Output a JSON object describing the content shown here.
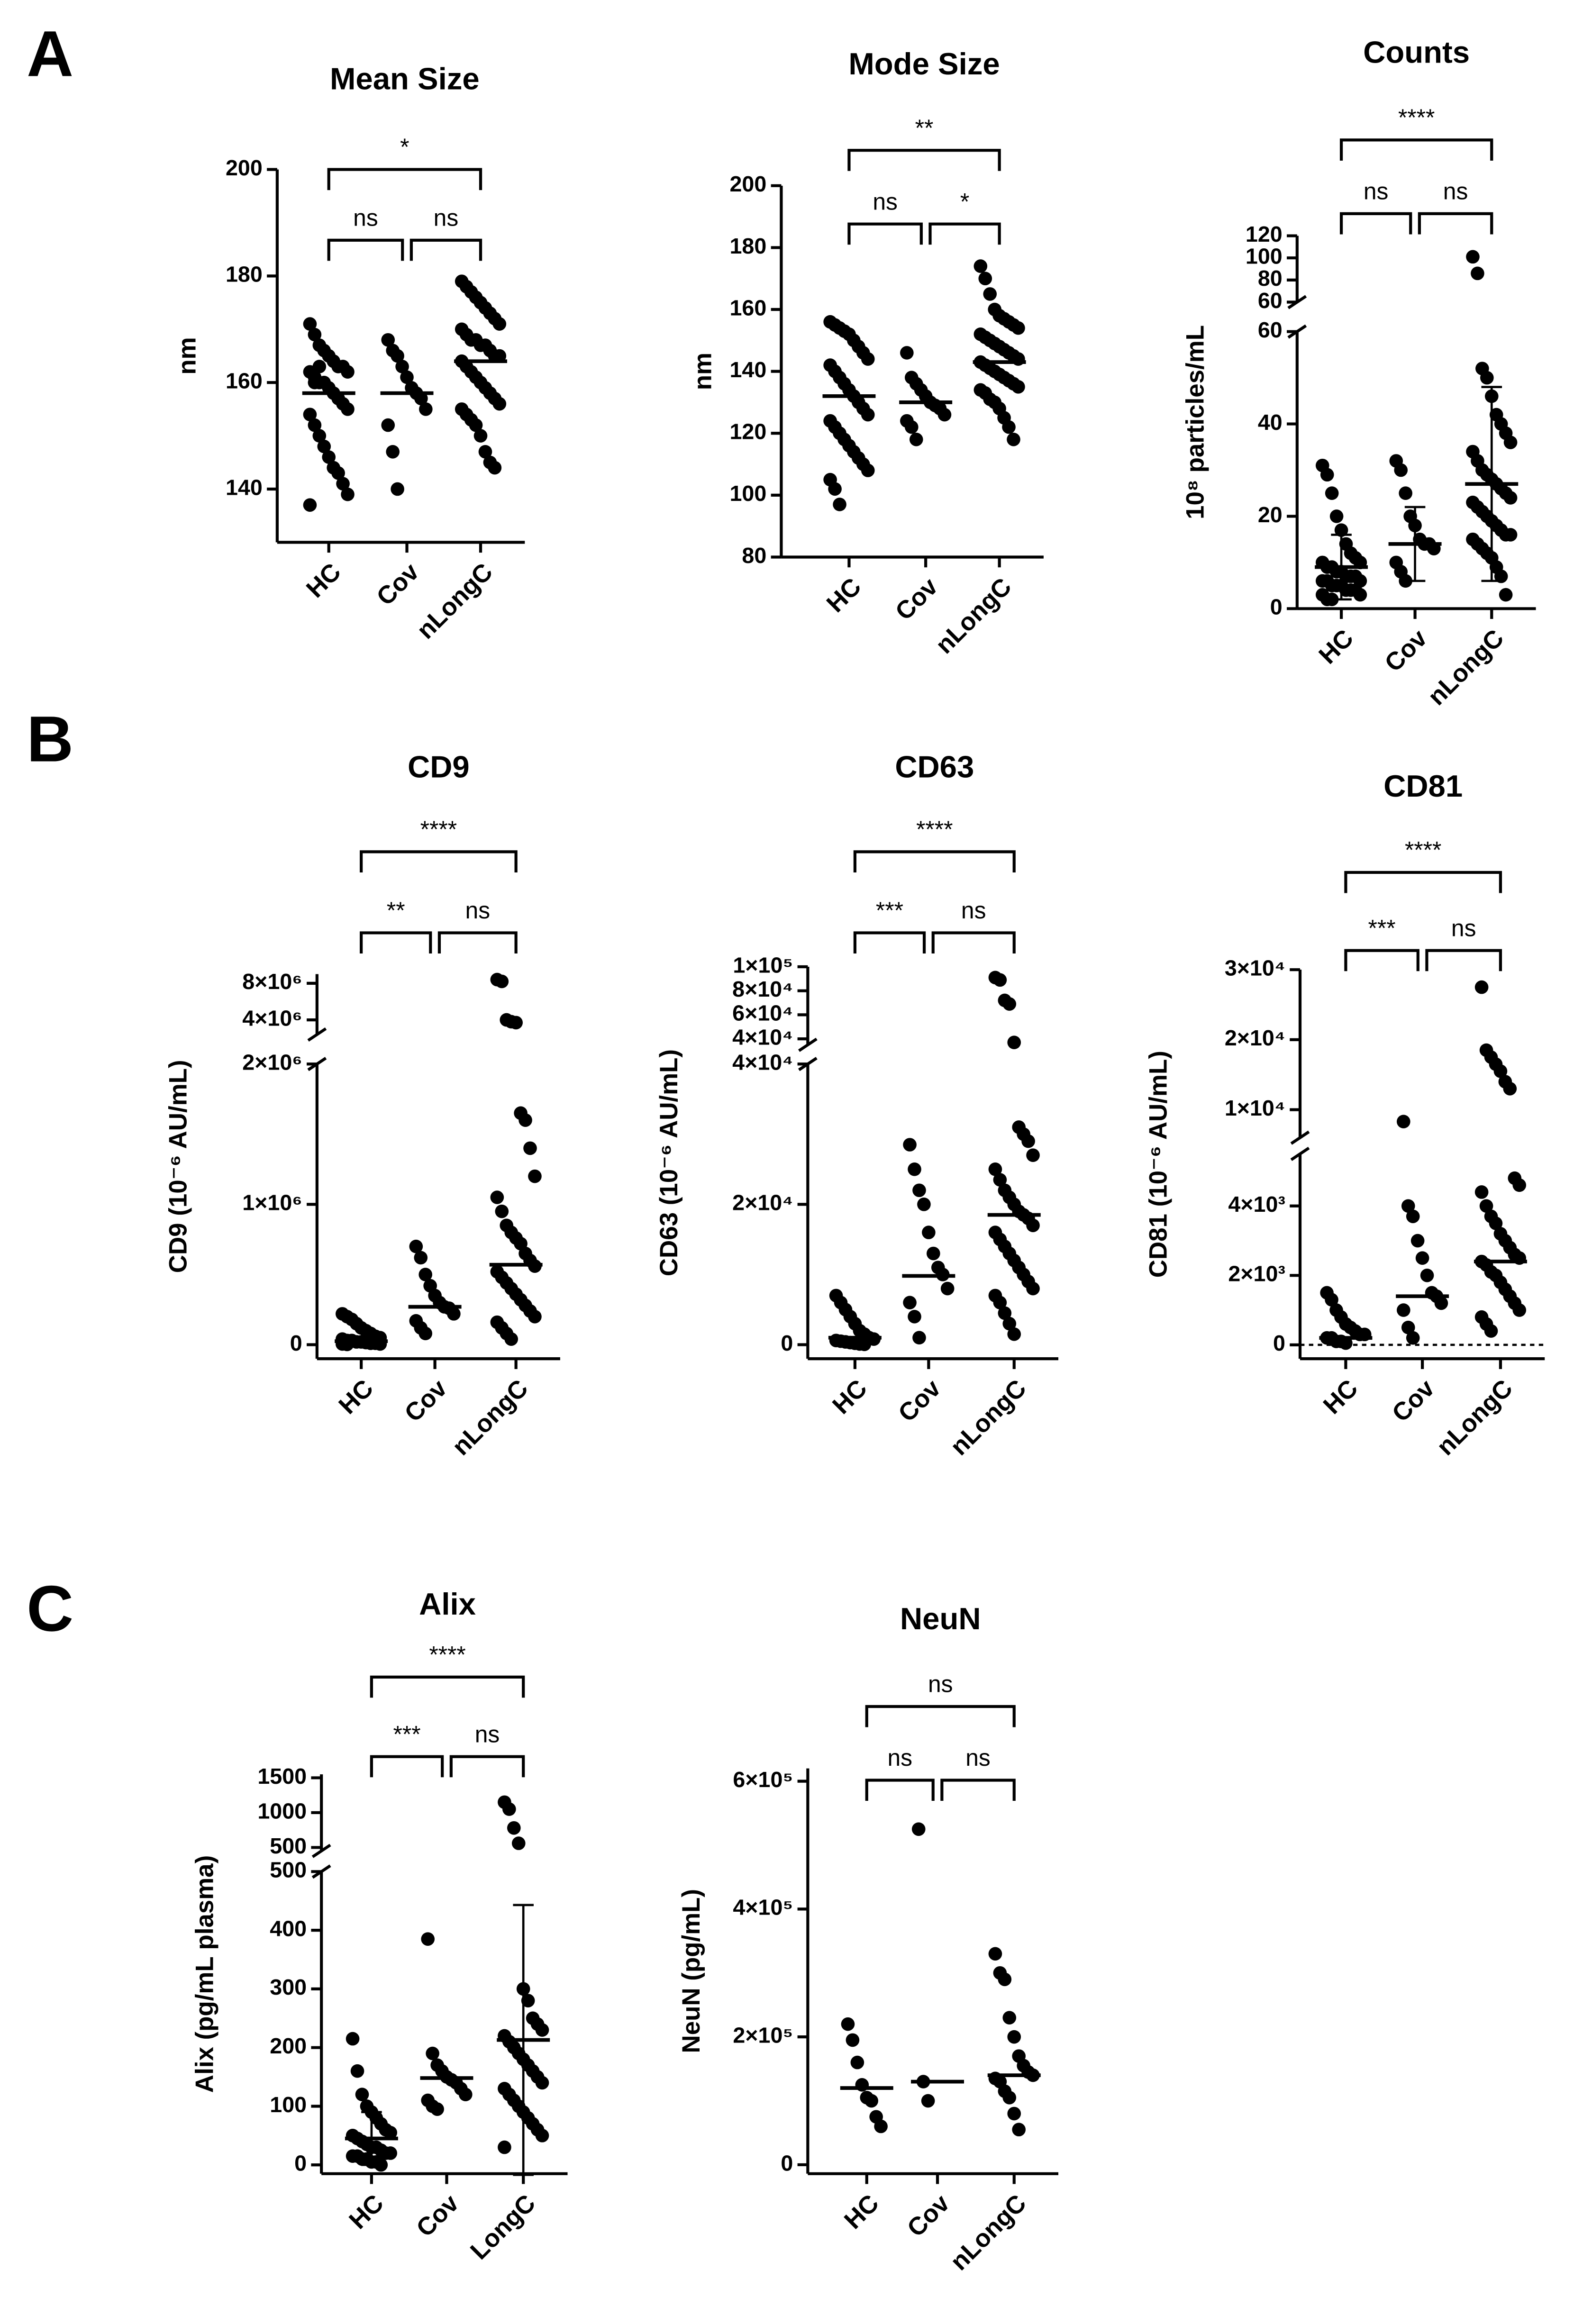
{
  "panel_labels": [
    "A",
    "B",
    "C"
  ],
  "chart_data": [
    {
      "type": "dotplot",
      "title": "Mean Size",
      "ylabel": "nm",
      "color": "#000000",
      "categories": [
        "HC",
        "Cov",
        "nLongC"
      ],
      "groups": [
        {
          "values": [
            171,
            169,
            167,
            166,
            165,
            164,
            163,
            163,
            162,
            162,
            161,
            160,
            160,
            159,
            158,
            157,
            156,
            155,
            154,
            152,
            150,
            148,
            146,
            144,
            143,
            141,
            139,
            137,
            160,
            163
          ],
          "center": 158
        },
        {
          "values": [
            168,
            166,
            165,
            163,
            161,
            159,
            158,
            157,
            155,
            152,
            147,
            140
          ],
          "center": 158
        },
        {
          "values": [
            179,
            178,
            177,
            176,
            175,
            174,
            173,
            172,
            171,
            170,
            169,
            168,
            168,
            167,
            167,
            166,
            165,
            165,
            164,
            163,
            162,
            161,
            160,
            159,
            158,
            157,
            156,
            155,
            154,
            153,
            152,
            150,
            147,
            145,
            144
          ],
          "center": 164
        }
      ],
      "segments": [
        {
          "ylim": [
            130,
            200
          ],
          "yticks": [
            140,
            160,
            180,
            200
          ]
        }
      ],
      "comparisons": [
        {
          "groups": [
            0,
            1
          ],
          "label": "ns"
        },
        {
          "groups": [
            1,
            2
          ],
          "label": "ns"
        },
        {
          "groups": [
            0,
            2
          ],
          "label": "*"
        }
      ]
    },
    {
      "type": "dotplot",
      "title": "Mode Size",
      "ylabel": "nm",
      "color": "#000000",
      "categories": [
        "HC",
        "Cov",
        "nLongC"
      ],
      "groups": [
        {
          "values": [
            156,
            155,
            154,
            153,
            152,
            150,
            148,
            146,
            144,
            142,
            140,
            138,
            136,
            134,
            132,
            130,
            128,
            126,
            124,
            122,
            120,
            118,
            116,
            114,
            112,
            110,
            108,
            105,
            102,
            97
          ],
          "center": 132
        },
        {
          "values": [
            146,
            138,
            136,
            134,
            132,
            130,
            129,
            128,
            126,
            124,
            122,
            118
          ],
          "center": 130
        },
        {
          "values": [
            174,
            170,
            165,
            160,
            158,
            157,
            156,
            155,
            154,
            152,
            151,
            150,
            149,
            148,
            147,
            146,
            145,
            144,
            143,
            142,
            141,
            140,
            139,
            138,
            137,
            136,
            135,
            134,
            133,
            131,
            130,
            128,
            125,
            122,
            118
          ],
          "center": 143
        }
      ],
      "segments": [
        {
          "ylim": [
            80,
            200
          ],
          "yticks": [
            80,
            100,
            120,
            140,
            160,
            180,
            200
          ]
        }
      ],
      "comparisons": [
        {
          "groups": [
            0,
            1
          ],
          "label": "ns"
        },
        {
          "groups": [
            1,
            2
          ],
          "label": "*"
        },
        {
          "groups": [
            0,
            2
          ],
          "label": "**"
        }
      ]
    },
    {
      "type": "dotplot",
      "title": "Counts",
      "ylabel": "10⁸ particles/mL",
      "color": "#000000",
      "categories": [
        "HC",
        "Cov",
        "nLongC"
      ],
      "groups": [
        {
          "values": [
            31,
            29,
            25,
            20,
            17,
            14,
            12,
            11,
            10,
            10,
            9,
            9,
            8,
            8,
            7,
            7,
            7,
            6,
            6,
            6,
            5,
            5,
            5,
            4,
            4,
            4,
            3,
            3,
            2,
            2
          ],
          "center": 9,
          "error": 7
        },
        {
          "values": [
            32,
            30,
            25,
            20,
            18,
            15,
            14,
            14,
            13,
            10,
            8,
            6
          ],
          "center": 14,
          "error": 8
        },
        {
          "values": [
            101,
            86,
            52,
            50,
            46,
            42,
            40,
            38,
            36,
            34,
            32,
            30,
            29,
            28,
            27,
            26,
            25,
            24,
            23,
            22,
            21,
            20,
            19,
            18,
            17,
            16,
            16,
            15,
            14,
            13,
            12,
            11,
            9,
            7,
            3
          ],
          "center": 27,
          "error": 21
        }
      ],
      "segments": [
        {
          "ylim": [
            0,
            60
          ],
          "yticks": [
            0,
            20,
            40,
            60
          ]
        },
        {
          "ylim": [
            60,
            120
          ],
          "yticks": [
            60,
            80,
            100,
            120
          ]
        }
      ],
      "comparisons": [
        {
          "groups": [
            0,
            1
          ],
          "label": "ns"
        },
        {
          "groups": [
            1,
            2
          ],
          "label": "ns"
        },
        {
          "groups": [
            0,
            2
          ],
          "label": "****"
        }
      ]
    },
    {
      "type": "dotplot",
      "title": "CD9",
      "ylabel": "CD9 (10⁻⁶ AU/mL)",
      "color": "#000000",
      "categories": [
        "HC",
        "Cov",
        "nLongC"
      ],
      "groups": [
        {
          "values": [
            220000,
            200000,
            180000,
            150000,
            120000,
            100000,
            80000,
            60000,
            50000,
            40000,
            30000,
            30000,
            20000,
            20000,
            15000,
            10000,
            10000,
            5000,
            5000,
            2000
          ],
          "center": 25000
        },
        {
          "values": [
            700000,
            620000,
            500000,
            420000,
            350000,
            300000,
            270000,
            260000,
            220000,
            170000,
            120000,
            80000
          ],
          "center": 270000
        },
        {
          "values": [
            8400000,
            8200000,
            4000000,
            3800000,
            3700000,
            1650000,
            1600000,
            1400000,
            1200000,
            1050000,
            950000,
            850000,
            800000,
            760000,
            720000,
            650000,
            600000,
            560000,
            520000,
            480000,
            440000,
            400000,
            360000,
            320000,
            280000,
            240000,
            200000,
            160000,
            120000,
            80000,
            40000
          ],
          "center": 570000
        }
      ],
      "segments": [
        {
          "ylim": [
            -100000,
            2000000
          ],
          "yticks": [
            0,
            {
              "value": 1000000,
              "label": "1×10⁶"
            },
            {
              "value": 2000000,
              "label": "2×10⁶"
            }
          ]
        },
        {
          "ylim": [
            2400000,
            9000000
          ],
          "yticks": [
            {
              "value": 4000000,
              "label": "4×10⁶"
            },
            {
              "value": 8000000,
              "label": "8×10⁶"
            }
          ]
        }
      ],
      "comparisons": [
        {
          "groups": [
            0,
            1
          ],
          "label": "**"
        },
        {
          "groups": [
            1,
            2
          ],
          "label": "ns"
        },
        {
          "groups": [
            0,
            2
          ],
          "label": "****"
        }
      ]
    },
    {
      "type": "dotplot",
      "title": "CD63",
      "ylabel": "CD63 (10⁻⁶ AU/mL)",
      "color": "#000000",
      "categories": [
        "HC",
        "Cov",
        "nLongC"
      ],
      "groups": [
        {
          "values": [
            7000,
            6000,
            5000,
            4000,
            3000,
            2000,
            1500,
            1000,
            800,
            600,
            500,
            400,
            300,
            200,
            100,
            50
          ],
          "center": 1000
        },
        {
          "values": [
            28500,
            25000,
            22000,
            20000,
            16000,
            13000,
            11000,
            10000,
            8000,
            6000,
            4000,
            1000
          ],
          "center": 9800
        },
        {
          "values": [
            91000,
            89000,
            72000,
            69000,
            37000,
            31000,
            30000,
            29000,
            27000,
            25000,
            23500,
            22000,
            21000,
            20000,
            19000,
            18500,
            18000,
            17000,
            16000,
            15000,
            14000,
            13000,
            12000,
            11000,
            10000,
            9000,
            8000,
            7000,
            6000,
            4500,
            3000,
            1500
          ],
          "center": 18500
        }
      ],
      "segments": [
        {
          "ylim": [
            -2000,
            40000
          ],
          "yticks": [
            0,
            {
              "value": 20000,
              "label": "2×10⁴"
            },
            {
              "value": 40000,
              "label": "4×10⁴"
            }
          ]
        },
        {
          "ylim": [
            35000,
            100000
          ],
          "yticks": [
            {
              "value": 40000,
              "label": "4×10⁴"
            },
            {
              "value": 60000,
              "label": "6×10⁴"
            },
            {
              "value": 80000,
              "label": "8×10⁴"
            },
            {
              "value": 100000,
              "label": "1×10⁵"
            }
          ]
        }
      ],
      "comparisons": [
        {
          "groups": [
            0,
            1
          ],
          "label": "***"
        },
        {
          "groups": [
            1,
            2
          ],
          "label": "ns"
        },
        {
          "groups": [
            0,
            2
          ],
          "label": "****"
        }
      ]
    },
    {
      "type": "dotplot",
      "title": "CD81",
      "ylabel": "CD81 (10⁻⁶ AU/mL)",
      "color": "#000000",
      "zero_line": true,
      "categories": [
        "HC",
        "Cov",
        "nLongC"
      ],
      "groups": [
        {
          "values": [
            1500,
            1300,
            1000,
            800,
            600,
            500,
            400,
            300,
            300,
            200,
            200,
            100,
            100,
            50
          ],
          "center": 200
        },
        {
          "values": [
            8300,
            4000,
            3700,
            3000,
            2500,
            2000,
            1500,
            1400,
            1200,
            1000,
            500,
            200
          ],
          "center": 1400
        },
        {
          "values": [
            27500,
            18500,
            17500,
            16500,
            15500,
            14000,
            13000,
            4800,
            4600,
            4400,
            4000,
            3700,
            3500,
            3200,
            3000,
            2800,
            2600,
            2500,
            2400,
            2300,
            2100,
            2000,
            1800,
            1600,
            1400,
            1200,
            1000,
            800,
            600,
            400
          ],
          "center": 2400
        }
      ],
      "segments": [
        {
          "ylim": [
            -400,
            5500
          ],
          "yticks": [
            0,
            {
              "value": 2000,
              "label": "2×10³"
            },
            {
              "value": 4000,
              "label": "4×10³"
            }
          ]
        },
        {
          "ylim": [
            6000,
            30000
          ],
          "yticks": [
            {
              "value": 10000,
              "label": "1×10⁴"
            },
            {
              "value": 20000,
              "label": "2×10⁴"
            },
            {
              "value": 30000,
              "label": "3×10⁴"
            }
          ]
        }
      ],
      "comparisons": [
        {
          "groups": [
            0,
            1
          ],
          "label": "***"
        },
        {
          "groups": [
            1,
            2
          ],
          "label": "ns"
        },
        {
          "groups": [
            0,
            2
          ],
          "label": "****"
        }
      ]
    },
    {
      "type": "dotplot",
      "title": "Alix",
      "ylabel": "Alix (pg/mL plasma)",
      "color": "#000000",
      "categories": [
        "HC",
        "Cov",
        "LongC"
      ],
      "groups": [
        {
          "values": [
            215,
            160,
            120,
            100,
            90,
            80,
            70,
            60,
            55,
            50,
            45,
            40,
            35,
            30,
            30,
            25,
            20,
            20,
            15,
            15,
            10,
            10,
            5,
            5,
            0
          ],
          "center": 45,
          "error": 45
        },
        {
          "values": [
            385,
            190,
            170,
            160,
            150,
            145,
            140,
            130,
            120,
            110,
            100,
            95
          ],
          "center": 148
        },
        {
          "values": [
            1150,
            1050,
            780,
            560,
            300,
            280,
            250,
            240,
            230,
            220,
            210,
            200,
            190,
            180,
            170,
            160,
            150,
            140,
            130,
            120,
            110,
            100,
            90,
            80,
            70,
            60,
            50,
            30
          ],
          "center": 213,
          "error": 230
        }
      ],
      "segments": [
        {
          "ylim": [
            -15,
            500
          ],
          "yticks": [
            0,
            100,
            200,
            300,
            400,
            500
          ]
        },
        {
          "ylim": [
            450,
            1550
          ],
          "yticks": [
            500,
            1000,
            1500
          ]
        }
      ],
      "comparisons": [
        {
          "groups": [
            0,
            1
          ],
          "label": "***"
        },
        {
          "groups": [
            1,
            2
          ],
          "label": "ns"
        },
        {
          "groups": [
            0,
            2
          ],
          "label": "****"
        }
      ]
    },
    {
      "type": "dotplot",
      "title": "NeuN",
      "ylabel": "NeuN (pg/mL)",
      "color": "#000000",
      "categories": [
        "HC",
        "Cov",
        "nLongC"
      ],
      "groups": [
        {
          "values": [
            220000,
            195000,
            160000,
            125000,
            105000,
            100000,
            75000,
            60000
          ],
          "center": 120000
        },
        {
          "values": [
            525000,
            130000,
            100000
          ],
          "center": 130000
        },
        {
          "values": [
            330000,
            300000,
            290000,
            230000,
            200000,
            170000,
            155000,
            145000,
            140000,
            135000,
            130000,
            115000,
            105000,
            80000,
            55000
          ],
          "center": 140000
        }
      ],
      "segments": [
        {
          "ylim": [
            -14000,
            620000
          ],
          "yticks": [
            0,
            {
              "value": 200000,
              "label": "2×10⁵"
            },
            {
              "value": 400000,
              "label": "4×10⁵"
            },
            {
              "value": 600000,
              "label": "6×10⁵"
            }
          ]
        }
      ],
      "comparisons": [
        {
          "groups": [
            0,
            1
          ],
          "label": "ns"
        },
        {
          "groups": [
            1,
            2
          ],
          "label": "ns"
        },
        {
          "groups": [
            0,
            2
          ],
          "label": "ns"
        }
      ]
    }
  ]
}
